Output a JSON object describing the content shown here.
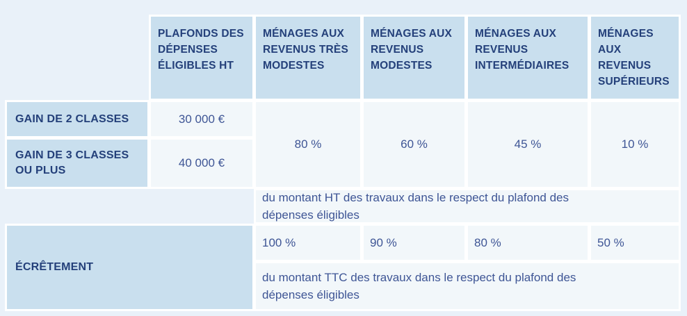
{
  "palette": {
    "page_bg": "#e9f1f9",
    "header_cell_bg": "#c9dfee",
    "data_cell_bg": "#f2f7fa",
    "separator": "#ffffff",
    "heading_text": "#24407a",
    "value_text": "#3e5595"
  },
  "table": {
    "column_headers": [
      "PLAFONDS DES DÉPENSES ÉLIGIBLES HT",
      "MÉNAGES AUX REVENUS TRÈS MODESTES",
      "MÉNAGES AUX REVENUS MODESTES",
      "MÉNAGES AUX REVENUS INTERMÉDIAIRES",
      "MÉNAGES AUX REVENUS SUPÉRIEURS"
    ],
    "gain_rows": [
      {
        "label": "GAIN DE 2 CLASSES",
        "plafond": "30 000 €"
      },
      {
        "label": "GAIN DE 3 CLASSES OU PLUS",
        "plafond": "40 000 €"
      }
    ],
    "aid_rates": {
      "values": [
        "80 %",
        "60 %",
        "45 %",
        "10 %"
      ],
      "note": "du montant HT des travaux dans le respect du plafond des dépenses éligibles"
    },
    "ecretement": {
      "label": "ÉCRÊTEMENT",
      "values": [
        "100 %",
        "90 %",
        "80 %",
        "50 %"
      ],
      "note": "du montant TTC des travaux dans le respect du plafond des dépenses éligibles"
    }
  }
}
